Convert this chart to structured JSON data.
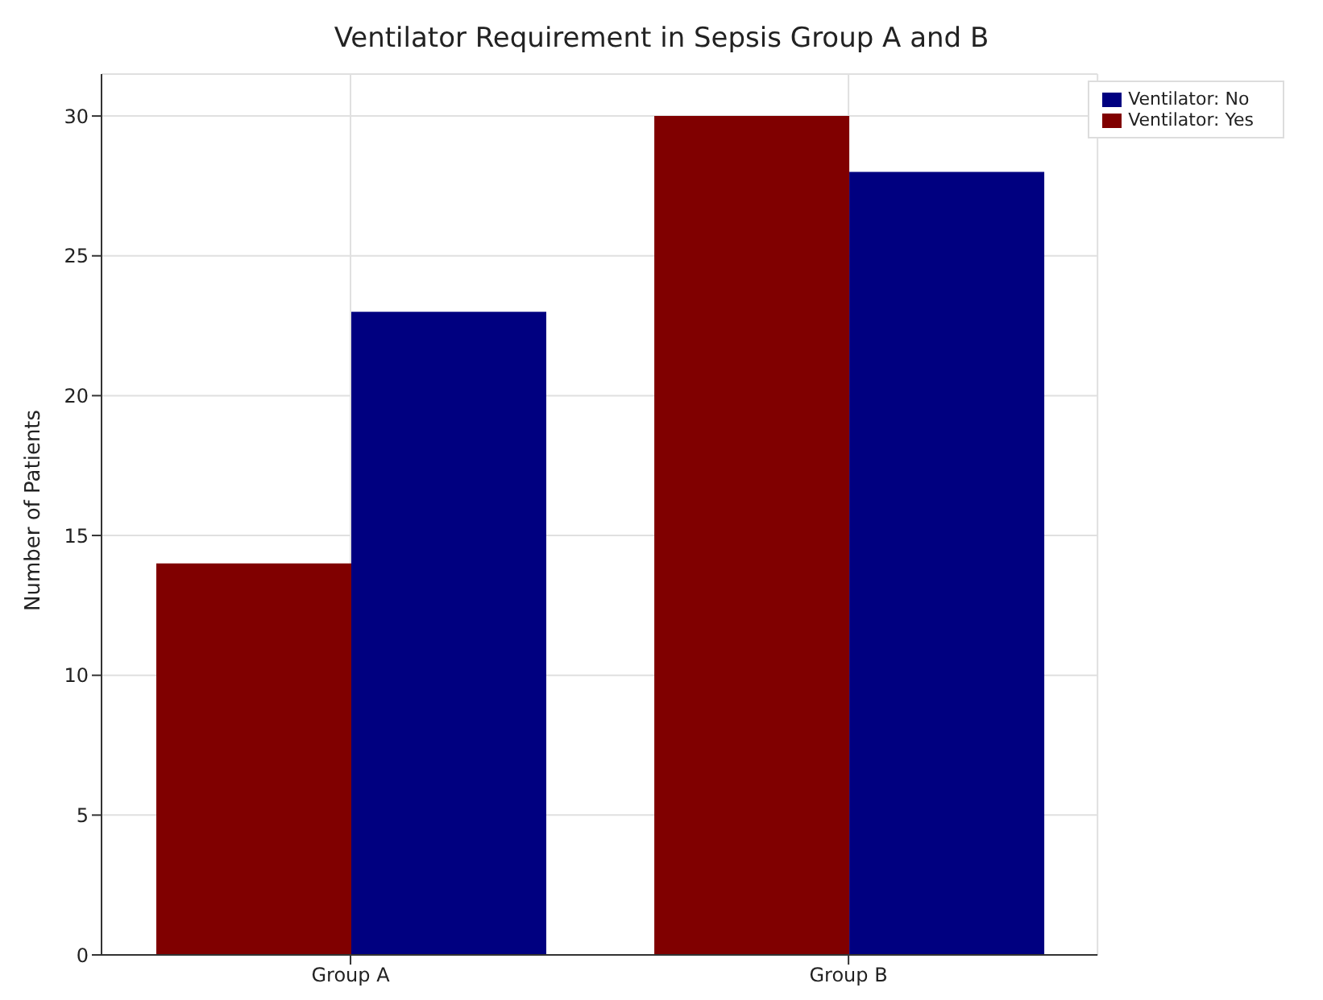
{
  "chart_data": {
    "type": "bar",
    "title": "Ventilator Requirement in Sepsis Group A and B",
    "ylabel": "Number of Patients",
    "categories": [
      "Group A",
      "Group B"
    ],
    "series": [
      {
        "name": "Ventilator: Yes",
        "color": "#800000",
        "values": [
          14,
          30
        ]
      },
      {
        "name": "Ventilator: No",
        "color": "#000080",
        "values": [
          23,
          28
        ]
      }
    ],
    "ylim": [
      0,
      31.5
    ],
    "yticks": [
      0,
      5,
      10,
      15,
      20,
      25,
      30
    ],
    "grid": true,
    "legend": "top right"
  }
}
